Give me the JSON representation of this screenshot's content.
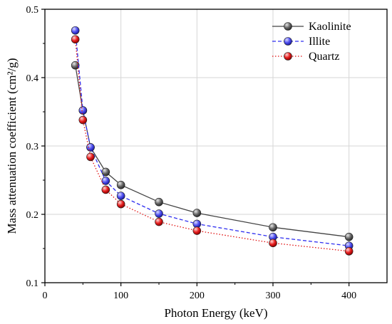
{
  "chart_data": {
    "type": "line",
    "xlabel": "Photon Energy (keV)",
    "ylabel": "Mass attenuation coefficient (cm²/g)",
    "xlim": [
      0,
      450
    ],
    "ylim": [
      0.1,
      0.5
    ],
    "xticks": [
      0,
      100,
      200,
      300,
      400
    ],
    "yticks": [
      0.1,
      0.2,
      0.3,
      0.4,
      0.5
    ],
    "xtick_labels": [
      "0",
      "100",
      "200",
      "300",
      "400"
    ],
    "ytick_labels": [
      "0.1",
      "0.2",
      "0.3",
      "0.4",
      "0.5"
    ],
    "grid": true,
    "legend_position": "top-right",
    "x": [
      40,
      50,
      60,
      80,
      100,
      150,
      200,
      300,
      400
    ],
    "series": [
      {
        "name": "Kaolinite",
        "values": [
          0.418,
          0.352,
          0.298,
          0.262,
          0.243,
          0.218,
          0.202,
          0.181,
          0.167
        ],
        "color": "#444444",
        "line_style": "solid"
      },
      {
        "name": "Illite",
        "values": [
          0.469,
          0.352,
          0.298,
          0.249,
          0.227,
          0.201,
          0.186,
          0.167,
          0.154
        ],
        "color": "#2f2ff0",
        "line_style": "dashed"
      },
      {
        "name": "Quartz",
        "values": [
          0.456,
          0.338,
          0.284,
          0.236,
          0.215,
          0.189,
          0.176,
          0.158,
          0.146
        ],
        "color": "#e01010",
        "line_style": "dotted"
      }
    ]
  }
}
